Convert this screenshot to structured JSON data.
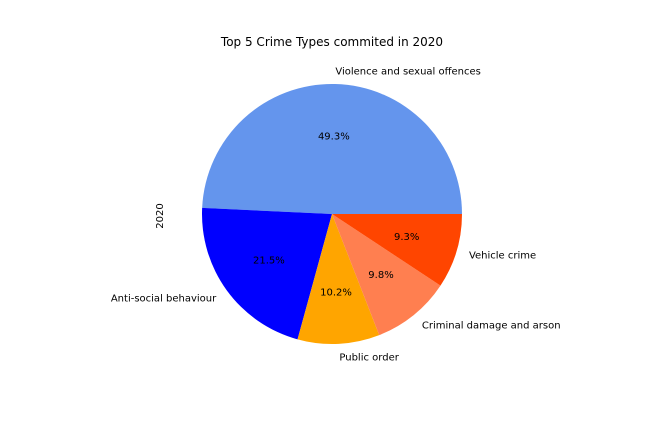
{
  "chart_data": {
    "type": "pie",
    "title": "Top 5 Crime Types commited in 2020",
    "ylabel": "2020",
    "start_angle_deg": 0,
    "direction": "counterclockwise",
    "slices": [
      {
        "label": "Violence and sexual offences",
        "percent": 49.3,
        "percent_label": "49.3%",
        "color": "#6495ED"
      },
      {
        "label": "Anti-social behaviour",
        "percent": 21.5,
        "percent_label": "21.5%",
        "color": "#0000FF"
      },
      {
        "label": "Public order",
        "percent": 10.2,
        "percent_label": "10.2%",
        "color": "#FFA500"
      },
      {
        "label": "Criminal damage and arson",
        "percent": 9.8,
        "percent_label": "9.8%",
        "color": "#FF7F50"
      },
      {
        "label": "Vehicle crime",
        "percent": 9.3,
        "percent_label": "9.3%",
        "color": "#FF4500"
      }
    ]
  }
}
